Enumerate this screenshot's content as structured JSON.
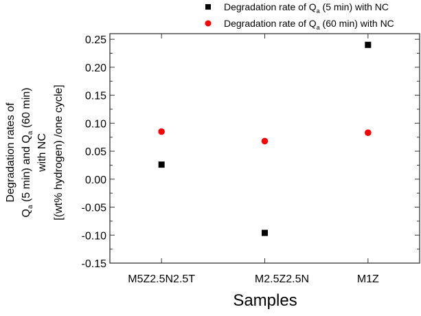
{
  "chart_data": {
    "type": "scatter",
    "title": "",
    "xlabel": "Samples",
    "ylabel_lines": [
      "Degradation rates of",
      "Q_a (5 min) and Q_a (60 min)",
      "with NC",
      "[(wt% hydrogen) /one cycle]"
    ],
    "ylabel": {
      "line1": "Degradation rates of",
      "line2_q1": "Q",
      "line2_sub1": "a",
      "line2_mid": " (5 min) and Q",
      "line2_sub2": "a",
      "line2_end": " (60 min)",
      "line3": "with NC",
      "line4": "[(wt% hydrogen) /one cycle]"
    },
    "categories": [
      "M5Z2.5N2.5T",
      "M2.5Z2.5N",
      "M1Z"
    ],
    "ylim": [
      -0.15,
      0.26
    ],
    "yticks": [
      "-0.15",
      "-0.10",
      "-0.05",
      "0.00",
      "0.05",
      "0.10",
      "0.15",
      "0.20",
      "0.25"
    ],
    "grid": false,
    "legend_placement": "top-right, outside plot",
    "series": [
      {
        "name": "Degradation rate of Q_a (5 min) with NC",
        "legend": {
          "pre": "Degradation rate of Q",
          "sub": "a",
          "post": " (5 min) with NC"
        },
        "marker": "square",
        "color": "#000000",
        "values": [
          0.026,
          -0.096,
          0.24
        ]
      },
      {
        "name": "Degradation rate of Q_a (60 min) with NC",
        "legend": {
          "pre": "Degradation rate of Q",
          "sub": "a",
          "post": " (60 min) with NC"
        },
        "marker": "circle",
        "color": "#ff0000",
        "values": [
          0.085,
          0.068,
          0.083
        ]
      }
    ]
  }
}
